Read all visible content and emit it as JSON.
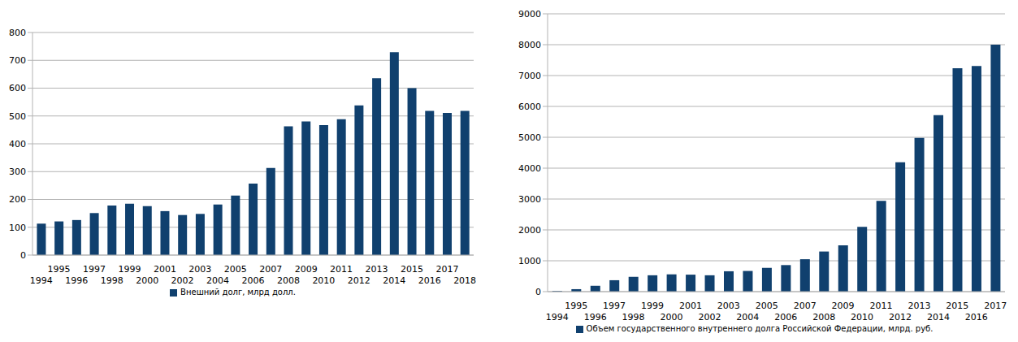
{
  "chart_data": [
    {
      "type": "bar",
      "categories": [
        "1994",
        "1995",
        "1996",
        "1997",
        "1998",
        "1999",
        "2000",
        "2001",
        "2002",
        "2003",
        "2004",
        "2005",
        "2006",
        "2007",
        "2008",
        "2009",
        "2010",
        "2011",
        "2012",
        "2013",
        "2014",
        "2015",
        "2016",
        "2017",
        "2018"
      ],
      "series": [
        {
          "name": "Внешний долг, млрд долл.",
          "color": "#10406e",
          "values": [
            113,
            121,
            126,
            151,
            178,
            185,
            176,
            158,
            144,
            148,
            182,
            214,
            257,
            313,
            463,
            480,
            467,
            488,
            538,
            636,
            729,
            600,
            518,
            511,
            518
          ]
        }
      ],
      "ylim": [
        0,
        800
      ],
      "yticks": [
        0,
        100,
        200,
        300,
        400,
        500,
        600,
        700,
        800
      ],
      "grid": true,
      "legend": "bottom"
    },
    {
      "type": "bar",
      "categories": [
        "1994",
        "1995",
        "1996",
        "1997",
        "1998",
        "1999",
        "2000",
        "2001",
        "2002",
        "2003",
        "2004",
        "2005",
        "2006",
        "2007",
        "2008",
        "2009",
        "2010",
        "2011",
        "2012",
        "2013",
        "2014",
        "2015",
        "2016",
        "2017"
      ],
      "series": [
        {
          "name": "Объем государственного внутреннего долга Российской Федерации, млрд. руб.",
          "color": "#10406e",
          "values": [
            20,
            80,
            190,
            370,
            480,
            530,
            560,
            550,
            530,
            660,
            670,
            770,
            860,
            1050,
            1300,
            1500,
            2100,
            2940,
            4190,
            4980,
            5720,
            7240,
            7310,
            8000
          ]
        }
      ],
      "ylim": [
        0,
        9000
      ],
      "yticks": [
        0,
        1000,
        2000,
        3000,
        4000,
        5000,
        6000,
        7000,
        8000,
        9000
      ],
      "grid": true,
      "legend": "bottom"
    }
  ]
}
